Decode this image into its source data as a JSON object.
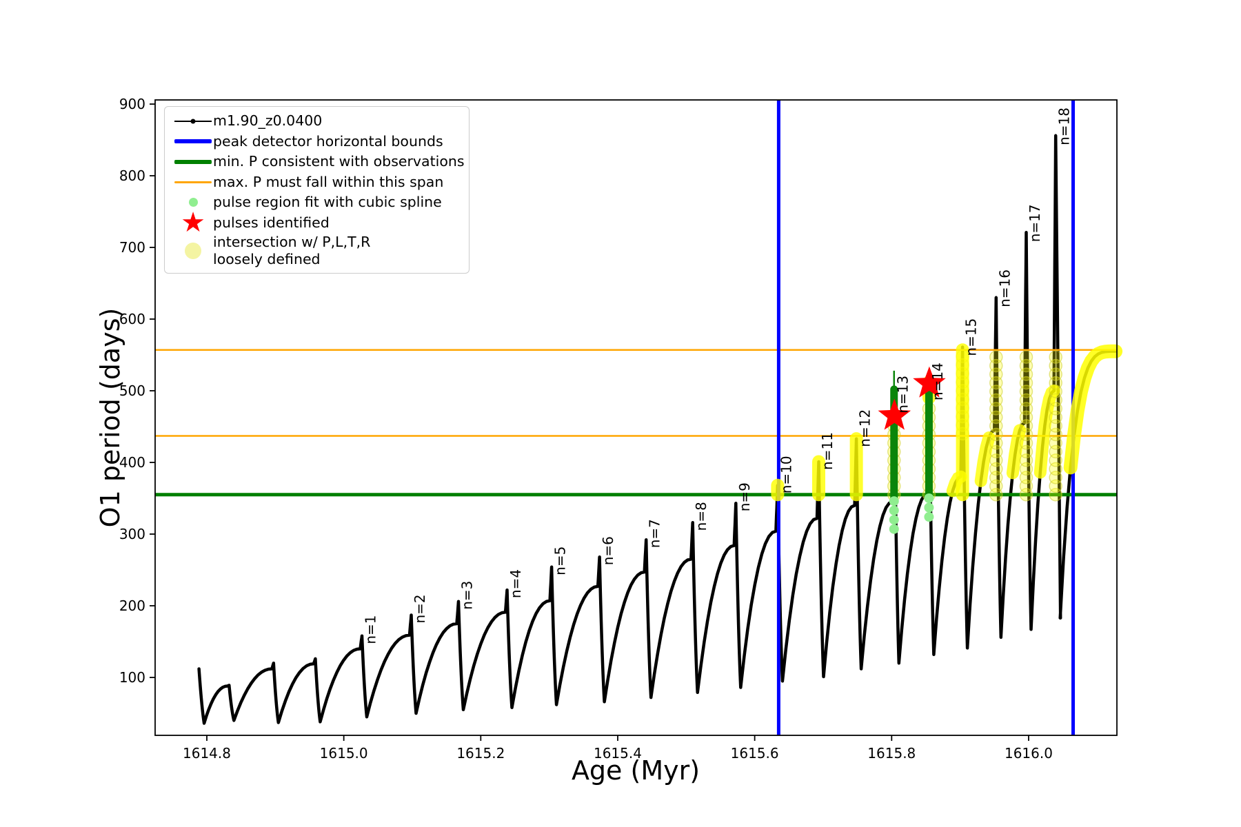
{
  "axes": {
    "xlabel": "Age (Myr)",
    "ylabel": "O1 period (days)"
  },
  "legend": {
    "items": [
      {
        "label": "m1.90_z0.0400",
        "marker": "line-dot",
        "color": "#000000"
      },
      {
        "label": "peak detector horizontal bounds",
        "marker": "thick-line",
        "color": "#0000ff"
      },
      {
        "label": "min. P consistent with observations",
        "marker": "thick-line",
        "color": "#008000"
      },
      {
        "label": "max. P must fall within this span",
        "marker": "line",
        "color": "#ffa500"
      },
      {
        "label": "pulse region fit with cubic spline",
        "marker": "dot",
        "color": "#90ee90"
      },
      {
        "label": "pulses identified",
        "marker": "star",
        "color": "#ff0000"
      },
      {
        "label": "intersection w/ P,L,T,R",
        "label2": "loosely defined",
        "marker": "big-dot",
        "color": "#f4f4a2"
      }
    ]
  },
  "chart_data": {
    "type": "line",
    "title": "",
    "xlabel": "Age (Myr)",
    "ylabel": "O1 period (days)",
    "xlim": [
      1614.7245,
      1616.1289
    ],
    "ylim": [
      19.2,
      905.8
    ],
    "xticks": [
      1614.8,
      1615.0,
      1615.2,
      1615.4,
      1615.6,
      1615.8,
      1616.0
    ],
    "yticks": [
      100,
      200,
      300,
      400,
      500,
      600,
      700,
      800,
      900
    ],
    "grid": false,
    "legend_position": "upper left",
    "series_name": "m1.90_z0.0400",
    "colors": {
      "track": "#000000",
      "blue": "#0000ff",
      "green": "#008000",
      "orange": "#ffa500",
      "yellow": "#ffff00",
      "lightgreen": "#90ee90",
      "spline_green": "#0a850a",
      "star_red": "#ff0000"
    },
    "hlines": [
      {
        "y": 355,
        "color": "green",
        "lw": 5,
        "name": "min-P-consistent"
      },
      {
        "y": 437,
        "color": "orange",
        "lw": 2.5,
        "name": "max-P-span-lower"
      },
      {
        "y": 557,
        "color": "orange",
        "lw": 2.5,
        "name": "max-P-span-upper"
      }
    ],
    "vlines": [
      {
        "x": 1615.635,
        "color": "blue",
        "lw": 5,
        "name": "peak-detector-left-bound"
      },
      {
        "x": 1616.065,
        "color": "blue",
        "lw": 5,
        "name": "peak-detector-right-bound"
      }
    ],
    "pulses": [
      {
        "n": null,
        "age": 1614.7905,
        "peak": 112,
        "shoulder": 112,
        "min_after": 36
      },
      {
        "n": null,
        "age": 1614.834,
        "peak": 89,
        "shoulder": 88,
        "min_after": 40
      },
      {
        "n": null,
        "age": 1614.899,
        "peak": 120,
        "shoulder": 112,
        "min_after": 37
      },
      {
        "n": null,
        "age": 1614.96,
        "peak": 126,
        "shoulder": 119,
        "min_after": 38
      },
      {
        "n": 1,
        "age": 1615.028,
        "peak": 158,
        "shoulder": 140,
        "min_after": 45
      },
      {
        "n": 2,
        "age": 1615.1,
        "peak": 187,
        "shoulder": 159,
        "min_after": 50
      },
      {
        "n": 3,
        "age": 1615.169,
        "peak": 206,
        "shoulder": 175,
        "min_after": 55
      },
      {
        "n": 4,
        "age": 1615.24,
        "peak": 222,
        "shoulder": 191,
        "min_after": 58
      },
      {
        "n": 5,
        "age": 1615.305,
        "peak": 254,
        "shoulder": 207,
        "min_after": 62
      },
      {
        "n": 6,
        "age": 1615.375,
        "peak": 268,
        "shoulder": 227,
        "min_after": 66
      },
      {
        "n": 7,
        "age": 1615.443,
        "peak": 292,
        "shoulder": 247,
        "min_after": 72
      },
      {
        "n": 8,
        "age": 1615.511,
        "peak": 316,
        "shoulder": 265,
        "min_after": 79
      },
      {
        "n": 9,
        "age": 1615.574,
        "peak": 343,
        "shoulder": 284,
        "min_after": 86
      },
      {
        "n": 10,
        "age": 1615.635,
        "peak": 368,
        "shoulder": 304,
        "min_after": 95,
        "yc_solid": [
          355,
          368
        ]
      },
      {
        "n": 11,
        "age": 1615.695,
        "peak": 401,
        "shoulder": 322,
        "min_after": 101,
        "yc_solid": [
          355,
          401
        ]
      },
      {
        "n": 12,
        "age": 1615.75,
        "peak": 433,
        "shoulder": 340,
        "min_after": 112,
        "yc_solid": [
          355,
          433
        ]
      },
      {
        "n": 13,
        "age": 1615.805,
        "peak": 502,
        "shoulder": 345,
        "min_after": 120,
        "yc_beads": [
          355,
          470
        ],
        "label_p": 480
      },
      {
        "n": 14,
        "age": 1615.856,
        "peak": 508,
        "shoulder": 356,
        "min_after": 132,
        "yc_beads": [
          355,
          480
        ],
        "yc_solid": [
          490,
          512
        ],
        "label_p": 498
      },
      {
        "n": 15,
        "age": 1615.905,
        "peak": 561,
        "shoulder": 380,
        "min_after": 141,
        "yc_solid": [
          355,
          557
        ],
        "yc_beads": [
          440,
          557
        ],
        "ya_solid": [
          355,
          380
        ],
        "label_p": 560
      },
      {
        "n": 16,
        "age": 1615.954,
        "peak": 630,
        "shoulder": 445,
        "min_after": 156,
        "ya_solid": [
          355,
          437
        ],
        "yc_beads": [
          355,
          557
        ],
        "label_p": 628
      },
      {
        "n": 17,
        "age": 1615.998,
        "peak": 721,
        "shoulder": 455,
        "min_after": 167,
        "ya_solid": [
          355,
          450
        ],
        "yc_beads": [
          355,
          557
        ],
        "label_p": 719
      },
      {
        "n": 18,
        "age": 1616.041,
        "peak": 856,
        "shoulder": 500,
        "min_after": 183,
        "ya_solid": [
          355,
          500
        ],
        "yc_beads": [
          355,
          557
        ],
        "label_p": 854
      }
    ],
    "tail": {
      "start_age": 1616.046,
      "start_p": 183,
      "end_age": 1616.127,
      "end_p": 555,
      "rise_exp": 4,
      "ya_solid": [
        355,
        555
      ]
    },
    "stars": [
      {
        "age": 1615.804,
        "period": 465
      },
      {
        "age": 1615.855,
        "period": 510
      }
    ],
    "spline_columns": [
      {
        "age": 1615.805,
        "from": 348,
        "to": 502,
        "thin_to": 528,
        "light": [
          307,
          348
        ]
      },
      {
        "age": 1615.856,
        "from": 351,
        "to": 500,
        "thin_to": null,
        "light": [
          324,
          351
        ]
      }
    ]
  }
}
